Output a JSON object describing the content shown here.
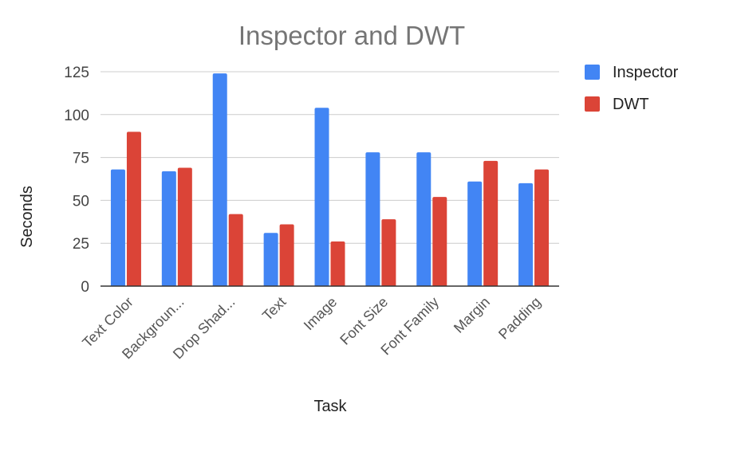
{
  "chart_data": {
    "type": "bar",
    "title": "Inspector and DWT",
    "xlabel": "Task",
    "ylabel": "Seconds",
    "categories": [
      "Text Color",
      "Backgroun...",
      "Drop Shad...",
      "Text",
      "Image",
      "Font Size",
      "Font Family",
      "Margin",
      "Padding"
    ],
    "series": [
      {
        "name": "Inspector",
        "color": "#4285f4",
        "values": [
          68,
          67,
          124,
          31,
          104,
          78,
          78,
          61,
          60
        ]
      },
      {
        "name": "DWT",
        "color": "#db4437",
        "values": [
          90,
          69,
          42,
          36,
          26,
          39,
          52,
          73,
          68
        ]
      }
    ],
    "ylim": [
      0,
      125
    ],
    "yticks": [
      0,
      25,
      50,
      75,
      100,
      125
    ],
    "grid": true,
    "legend_position": "right"
  }
}
